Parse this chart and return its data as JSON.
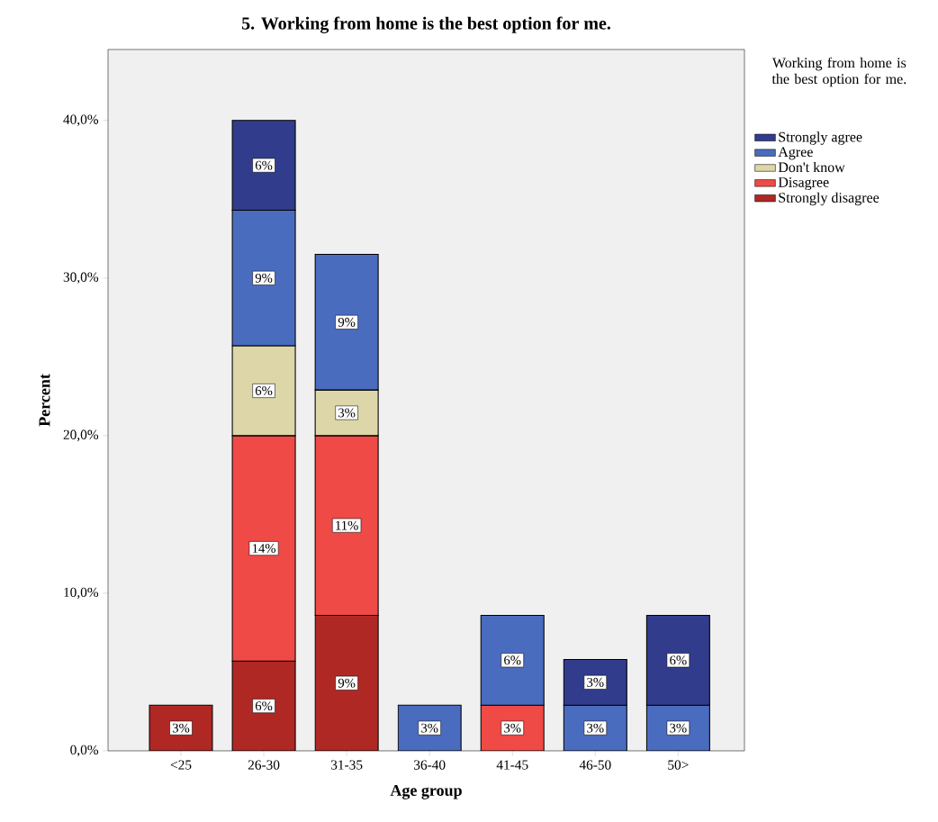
{
  "chart_data": {
    "type": "bar",
    "title": "5. Working from home is the best option for me.",
    "xlabel": "Age group",
    "ylabel": "Percent",
    "legend_title": "Working from home is the best option for me.",
    "categories": [
      "<25",
      "26-30",
      "31-35",
      "36-40",
      "41-45",
      "46-50",
      "50>"
    ],
    "stacked": true,
    "legend": "right",
    "ylim": [
      0,
      44.5
    ],
    "yticks": [
      {
        "value": 0,
        "label": "0,0%"
      },
      {
        "value": 10,
        "label": "10,0%"
      },
      {
        "value": 20,
        "label": "20,0%"
      },
      {
        "value": 30,
        "label": "30,0%"
      },
      {
        "value": 40,
        "label": "40,0%"
      }
    ],
    "series": [
      {
        "name": "Strongly disagree",
        "color": "#b02824",
        "values": [
          2.9,
          5.7,
          8.6,
          null,
          null,
          null,
          null
        ],
        "value_labels": [
          "3%",
          "6%",
          "9%",
          null,
          null,
          null,
          null
        ]
      },
      {
        "name": "Disagree",
        "color": "#f04a46",
        "values": [
          null,
          14.3,
          11.4,
          null,
          2.9,
          null,
          null
        ],
        "value_labels": [
          null,
          "14%",
          "11%",
          null,
          "3%",
          null,
          null
        ]
      },
      {
        "name": "Don't know",
        "color": "#ddd6a8",
        "values": [
          null,
          5.7,
          2.9,
          null,
          null,
          null,
          null
        ],
        "value_labels": [
          null,
          "6%",
          "3%",
          null,
          null,
          null,
          null
        ]
      },
      {
        "name": "Agree",
        "color": "#4a6cbf",
        "values": [
          null,
          8.6,
          8.6,
          2.9,
          5.7,
          2.9,
          2.9
        ],
        "value_labels": [
          null,
          "9%",
          "9%",
          "3%",
          "6%",
          "3%",
          "3%"
        ]
      },
      {
        "name": "Strongly agree",
        "color": "#323c8c",
        "values": [
          null,
          5.7,
          null,
          null,
          null,
          2.9,
          5.7
        ],
        "value_labels": [
          null,
          "6%",
          null,
          null,
          null,
          "3%",
          "6%"
        ]
      }
    ]
  }
}
